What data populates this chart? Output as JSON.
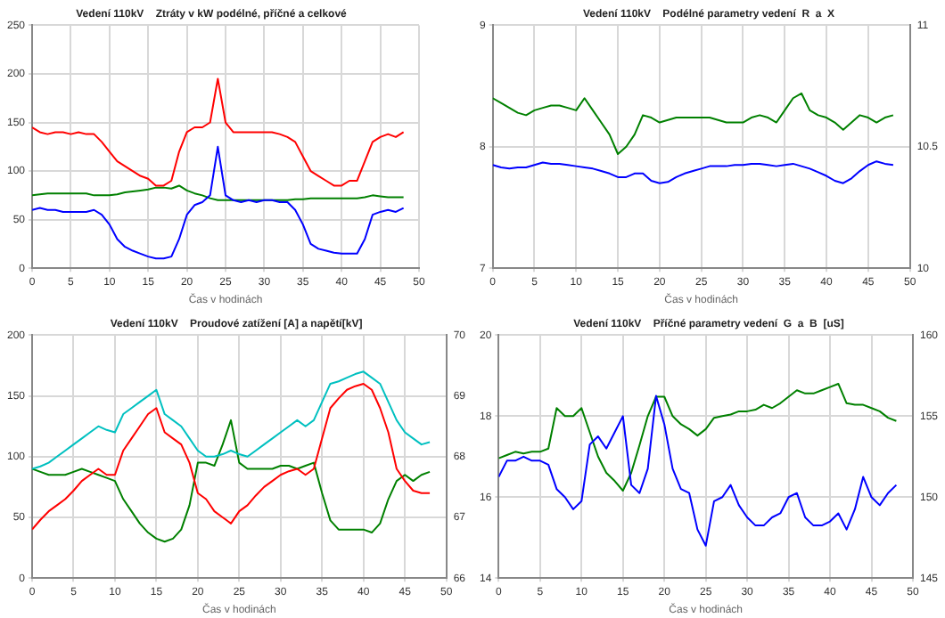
{
  "chart_data": [
    {
      "type": "line",
      "title": "Vedení 110kV    Ztráty v kW podélné, příčné a celkové",
      "xlabel": "Čas v hodinách",
      "x": [
        0,
        1,
        2,
        3,
        4,
        5,
        6,
        7,
        8,
        9,
        10,
        11,
        12,
        13,
        14,
        15,
        16,
        17,
        18,
        19,
        20,
        21,
        22,
        23,
        24,
        25,
        26,
        27,
        28,
        29,
        30,
        31,
        32,
        33,
        34,
        35,
        36,
        37,
        38,
        39,
        40,
        41,
        42,
        43,
        44,
        45,
        46,
        47,
        48
      ],
      "xlim": [
        0,
        50
      ],
      "xticks": [
        0,
        5,
        10,
        15,
        20,
        25,
        30,
        35,
        40,
        45,
        50
      ],
      "ylim": [
        0,
        250
      ],
      "yticks": [
        0,
        50,
        100,
        150,
        200,
        250
      ],
      "grid": true,
      "series": [
        {
          "color": "#ff0000",
          "values": [
            145,
            140,
            138,
            140,
            140,
            138,
            140,
            138,
            138,
            130,
            120,
            110,
            105,
            100,
            95,
            92,
            85,
            85,
            90,
            120,
            140,
            145,
            145,
            150,
            195,
            150,
            140,
            140,
            140,
            140,
            140,
            140,
            138,
            135,
            130,
            115,
            100,
            95,
            90,
            85,
            85,
            90,
            90,
            110,
            130,
            135,
            138,
            135,
            140
          ]
        },
        {
          "color": "#0000ff",
          "values": [
            60,
            62,
            60,
            60,
            58,
            58,
            58,
            58,
            60,
            55,
            45,
            30,
            22,
            18,
            15,
            12,
            10,
            10,
            12,
            30,
            55,
            65,
            68,
            75,
            125,
            75,
            70,
            68,
            70,
            68,
            70,
            70,
            68,
            68,
            60,
            45,
            25,
            20,
            18,
            16,
            15,
            15,
            15,
            30,
            55,
            58,
            60,
            58,
            62
          ]
        },
        {
          "color": "#008000",
          "values": [
            75,
            76,
            77,
            77,
            77,
            77,
            77,
            77,
            75,
            75,
            75,
            76,
            78,
            79,
            80,
            81,
            83,
            83,
            82,
            85,
            80,
            77,
            75,
            72,
            70,
            70,
            70,
            70,
            70,
            70,
            70,
            70,
            70,
            70,
            71,
            71,
            72,
            72,
            72,
            72,
            72,
            72,
            72,
            73,
            75,
            74,
            73,
            73,
            73
          ]
        }
      ]
    },
    {
      "type": "line",
      "title": "Vedení 110kV    Podélné parametry vedení  R  a  X",
      "xlabel": "Čas v hodinách",
      "x": [
        0,
        1,
        2,
        3,
        4,
        5,
        6,
        7,
        8,
        9,
        10,
        11,
        12,
        13,
        14,
        15,
        16,
        17,
        18,
        19,
        20,
        21,
        22,
        23,
        24,
        25,
        26,
        27,
        28,
        29,
        30,
        31,
        32,
        33,
        34,
        35,
        36,
        37,
        38,
        39,
        40,
        41,
        42,
        43,
        44,
        45,
        46,
        47,
        48
      ],
      "xlim": [
        0,
        50
      ],
      "xticks": [
        0,
        5,
        10,
        15,
        20,
        25,
        30,
        35,
        40,
        45,
        50
      ],
      "ylim": [
        7,
        9
      ],
      "yticks": [
        7,
        8,
        9
      ],
      "y2lim": [
        10,
        11
      ],
      "y2ticks": [
        10,
        10.5,
        11
      ],
      "grid": true,
      "series": [
        {
          "color": "#0000ff",
          "values": [
            7.85,
            7.83,
            7.82,
            7.83,
            7.83,
            7.85,
            7.87,
            7.86,
            7.86,
            7.85,
            7.84,
            7.83,
            7.82,
            7.8,
            7.78,
            7.75,
            7.75,
            7.78,
            7.78,
            7.72,
            7.7,
            7.71,
            7.75,
            7.78,
            7.8,
            7.82,
            7.84,
            7.84,
            7.84,
            7.85,
            7.85,
            7.86,
            7.86,
            7.85,
            7.84,
            7.85,
            7.86,
            7.84,
            7.82,
            7.79,
            7.76,
            7.72,
            7.7,
            7.74,
            7.8,
            7.85,
            7.88,
            7.86,
            7.85
          ]
        },
        {
          "color": "#008000",
          "axis": "y2",
          "values": [
            10.7,
            10.68,
            10.66,
            10.64,
            10.63,
            10.65,
            10.66,
            10.67,
            10.67,
            10.66,
            10.65,
            10.7,
            10.65,
            10.6,
            10.55,
            10.47,
            10.5,
            10.55,
            10.63,
            10.62,
            10.6,
            10.61,
            10.62,
            10.62,
            10.62,
            10.62,
            10.62,
            10.61,
            10.6,
            10.6,
            10.6,
            10.62,
            10.63,
            10.62,
            10.6,
            10.65,
            10.7,
            10.72,
            10.65,
            10.63,
            10.62,
            10.6,
            10.57,
            10.6,
            10.63,
            10.62,
            10.6,
            10.62,
            10.63
          ]
        }
      ]
    },
    {
      "type": "line",
      "title": "Vedení 110kV    Proudové zatížení [A] a napětí[kV]",
      "xlabel": "Čas v hodinách",
      "x": [
        0,
        1,
        2,
        3,
        4,
        5,
        6,
        7,
        8,
        9,
        10,
        11,
        12,
        13,
        14,
        15,
        16,
        17,
        18,
        19,
        20,
        21,
        22,
        23,
        24,
        25,
        26,
        27,
        28,
        29,
        30,
        31,
        32,
        33,
        34,
        35,
        36,
        37,
        38,
        39,
        40,
        41,
        42,
        43,
        44,
        45,
        46,
        47,
        48
      ],
      "xlim": [
        0,
        50
      ],
      "xticks": [
        0,
        5,
        10,
        15,
        20,
        25,
        30,
        35,
        40,
        45,
        50
      ],
      "ylim": [
        0,
        200
      ],
      "yticks": [
        0,
        50,
        100,
        150,
        200
      ],
      "y2lim": [
        66,
        70
      ],
      "y2ticks": [
        66,
        67,
        68,
        69,
        70
      ],
      "grid": true,
      "series": [
        {
          "color": "#00c0c0",
          "values": [
            90,
            92,
            95,
            100,
            105,
            110,
            115,
            120,
            125,
            122,
            120,
            135,
            140,
            145,
            150,
            155,
            135,
            130,
            125,
            115,
            105,
            100,
            100,
            102,
            105,
            102,
            100,
            105,
            110,
            115,
            120,
            125,
            130,
            125,
            130,
            145,
            160,
            162,
            165,
            168,
            170,
            165,
            160,
            145,
            130,
            120,
            115,
            110,
            112
          ]
        },
        {
          "color": "#ff0000",
          "values": [
            40,
            48,
            55,
            60,
            65,
            72,
            80,
            85,
            90,
            85,
            85,
            105,
            115,
            125,
            135,
            140,
            120,
            115,
            110,
            95,
            70,
            65,
            55,
            50,
            45,
            55,
            60,
            68,
            75,
            80,
            85,
            88,
            90,
            85,
            90,
            115,
            140,
            148,
            155,
            158,
            160,
            155,
            140,
            120,
            90,
            80,
            72,
            70,
            70
          ]
        },
        {
          "color": "#008000",
          "axis": "y2",
          "values": [
            67.8,
            67.75,
            67.7,
            67.7,
            67.7,
            67.75,
            67.8,
            67.75,
            67.7,
            67.65,
            67.6,
            67.3,
            67.1,
            66.9,
            66.75,
            66.65,
            66.6,
            66.65,
            66.8,
            67.2,
            67.9,
            67.9,
            67.85,
            68.2,
            68.6,
            67.9,
            67.8,
            67.8,
            67.8,
            67.8,
            67.85,
            67.85,
            67.8,
            67.85,
            67.9,
            67.4,
            66.95,
            66.8,
            66.8,
            66.8,
            66.8,
            66.75,
            66.9,
            67.3,
            67.6,
            67.7,
            67.6,
            67.7,
            67.75
          ]
        }
      ]
    },
    {
      "type": "line",
      "title": "Vedení 110kV    Příčné parametry vedení  G  a  B  [uS]",
      "xlabel": "Čas v hodinách",
      "x": [
        0,
        1,
        2,
        3,
        4,
        5,
        6,
        7,
        8,
        9,
        10,
        11,
        12,
        13,
        14,
        15,
        16,
        17,
        18,
        19,
        20,
        21,
        22,
        23,
        24,
        25,
        26,
        27,
        28,
        29,
        30,
        31,
        32,
        33,
        34,
        35,
        36,
        37,
        38,
        39,
        40,
        41,
        42,
        43,
        44,
        45,
        46,
        47,
        48
      ],
      "xlim": [
        0,
        50
      ],
      "xticks": [
        0,
        5,
        10,
        15,
        20,
        25,
        30,
        35,
        40,
        45,
        50
      ],
      "ylim": [
        14,
        20
      ],
      "yticks": [
        14,
        16,
        18,
        20
      ],
      "y2lim": [
        145,
        160
      ],
      "y2ticks": [
        145,
        150,
        155,
        160
      ],
      "grid": true,
      "series": [
        {
          "color": "#0000ff",
          "values": [
            16.5,
            16.9,
            16.9,
            17,
            16.9,
            16.9,
            16.8,
            16.2,
            16,
            15.7,
            15.9,
            17.3,
            17.5,
            17.2,
            17.6,
            18,
            16.3,
            16.1,
            16.7,
            18.5,
            17.8,
            16.7,
            16.2,
            16.1,
            15.2,
            14.8,
            15.9,
            16,
            16.3,
            15.8,
            15.5,
            15.3,
            15.3,
            15.5,
            15.6,
            16,
            16.1,
            15.5,
            15.3,
            15.3,
            15.4,
            15.6,
            15.2,
            15.7,
            16.5,
            16,
            15.8,
            16.1,
            16.3
          ]
        },
        {
          "color": "#008000",
          "axis": "y2",
          "values": [
            152.4,
            152.6,
            152.8,
            152.7,
            152.8,
            152.8,
            153,
            155.5,
            155,
            155,
            155.5,
            154,
            152.5,
            151.5,
            151,
            150.4,
            151.5,
            153.2,
            155,
            156.2,
            156.2,
            155,
            154.5,
            154.2,
            153.8,
            154.2,
            154.9,
            155,
            155.1,
            155.3,
            155.3,
            155.4,
            155.7,
            155.5,
            155.8,
            156.2,
            156.6,
            156.4,
            156.4,
            156.6,
            156.8,
            157,
            155.8,
            155.7,
            155.7,
            155.5,
            155.3,
            154.9,
            154.7
          ]
        }
      ]
    }
  ]
}
